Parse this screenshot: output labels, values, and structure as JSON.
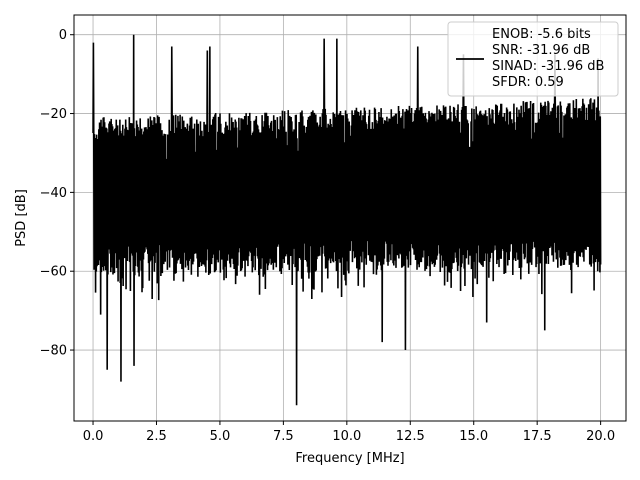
{
  "chart_data": {
    "type": "line",
    "xlabel": "Frequency [MHz]",
    "ylabel": "PSD [dB]",
    "xlim": [
      -0.75,
      21.0
    ],
    "ylim": [
      -98,
      5
    ],
    "x_ticks": [
      0.0,
      2.5,
      5.0,
      7.5,
      10.0,
      12.5,
      15.0,
      17.5,
      20.0
    ],
    "x_tick_labels": [
      "0.0",
      "2.5",
      "5.0",
      "7.5",
      "10.0",
      "12.5",
      "15.0",
      "17.5",
      "20.0"
    ],
    "y_ticks": [
      0,
      -20,
      -40,
      -60,
      -80
    ],
    "y_tick_labels": [
      "0",
      "−20",
      "−40",
      "−60",
      "−80"
    ],
    "grid": true,
    "legend_position": "top-right",
    "legend_entries": [
      "ENOB: -5.6 bits",
      "SNR: -31.96 dB",
      "SINAD: -31.96 dB",
      "SFDR: 0.59"
    ],
    "series": [
      {
        "color": "#000000",
        "x_range": [
          0.0,
          20.0
        ],
        "num_points": 1400,
        "upper_envelope_points": [
          [
            0.0,
            -21
          ],
          [
            20.0,
            -16
          ]
        ],
        "lower_envelope_points": [
          [
            0.0,
            -61
          ],
          [
            20.0,
            -59
          ]
        ],
        "peaks": [
          [
            0.02,
            -2
          ],
          [
            1.6,
            0
          ],
          [
            3.1,
            -3
          ],
          [
            4.5,
            -4
          ],
          [
            4.6,
            -3
          ],
          [
            9.1,
            -1
          ],
          [
            9.6,
            -1
          ],
          [
            12.8,
            -3
          ],
          [
            14.6,
            -5
          ],
          [
            18.2,
            -5
          ],
          [
            19.9,
            -6
          ]
        ],
        "dips": [
          [
            0.55,
            -85
          ],
          [
            1.1,
            -88
          ],
          [
            1.6,
            -84
          ],
          [
            8.0,
            -94
          ],
          [
            12.3,
            -80
          ],
          [
            11.4,
            -78
          ],
          [
            0.3,
            -71
          ],
          [
            15.5,
            -73
          ],
          [
            17.8,
            -75
          ]
        ]
      }
    ]
  }
}
